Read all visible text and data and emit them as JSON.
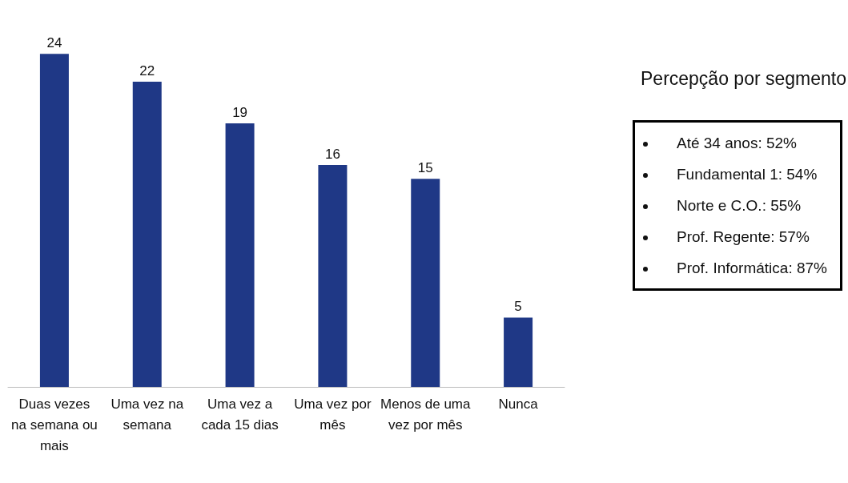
{
  "chart_data": {
    "type": "bar",
    "categories": [
      "Duas vezes na semana ou mais",
      "Uma vez na semana",
      "Uma vez a cada 15 dias",
      "Uma vez por mês",
      "Menos de uma vez por mês",
      "Nunca"
    ],
    "values": [
      24,
      22,
      19,
      16,
      15,
      5
    ],
    "color": "#1f3886",
    "data_labels": true,
    "tick_labels": "x",
    "annotations": [
      "Percepção por segmento",
      "Até 34 anos: 52%",
      "Fundamental 1: 54%",
      "Norte e C.O.: 55%",
      "Prof. Regente: 57%",
      "Prof. Informática: 87%"
    ]
  }
}
